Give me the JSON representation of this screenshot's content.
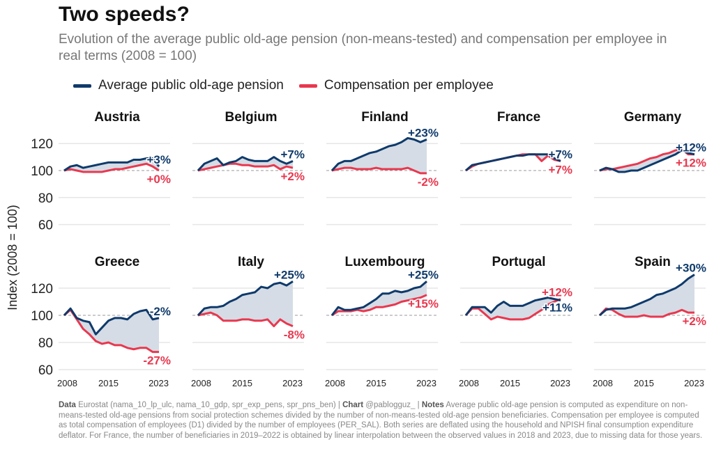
{
  "title": "Two speeds?",
  "subtitle": "Evolution of the average public old-age pension (non-means-tested) and compensation per employee in real terms (2008 = 100)",
  "notes": {
    "data_label": "Data",
    "data_text": "Eurostat (nama_10_lp_ulc, nama_10_gdp, spr_exp_pens, spr_pns_ben) |",
    "chart_label": "Chart",
    "chart_text": "@pablogguz_ |",
    "notes_label": "Notes",
    "notes_text": "Average public old-age pension is computed as expenditure on non-means-tested old-age pensions from social protection schemes divided by the number of non-means-tested old-age pension beneficiaries. Compensation per employee is computed as total compensation of employees (D1) divided by the number of employees (PER_SAL). Both series are deflated using the household and NPISH final consumption expenditure deflator. For France, the number of beneficiaries in 2019–2022 is obtained by linear interpolation between the observed values in 2018 and 2023, due to missing data for those years."
  },
  "chart_data": {
    "type": "line",
    "ylabel": "Index (2008 = 100)",
    "ylim": [
      55,
      130
    ],
    "yticks": [
      "60",
      "80",
      "100",
      "120"
    ],
    "xticks": [
      "2008",
      "2015",
      "2023"
    ],
    "x": [
      2008,
      2009,
      2010,
      2011,
      2012,
      2013,
      2014,
      2015,
      2016,
      2017,
      2018,
      2019,
      2020,
      2021,
      2022,
      2023
    ],
    "reference_line": 100,
    "legend": [
      "Average public old-age pension",
      "Compensation per employee"
    ],
    "colors": {
      "pension": "#0f3a6b",
      "compensation": "#e8384f",
      "gap_fill": "#d5dce5"
    },
    "panels": [
      {
        "country": "Austria",
        "pension": [
          100,
          103,
          104,
          102,
          103,
          104,
          105,
          106,
          106,
          106,
          106,
          108,
          108,
          109,
          109,
          103
        ],
        "compensation": [
          100,
          101,
          100,
          99,
          99,
          99,
          99,
          100,
          101,
          101,
          102,
          103,
          104,
          105,
          103,
          100
        ],
        "pension_label": "+3%",
        "compensation_label": "+0%"
      },
      {
        "country": "Belgium",
        "pension": [
          100,
          105,
          107,
          109,
          104,
          106,
          107,
          110,
          108,
          107,
          107,
          107,
          110,
          107,
          105,
          107
        ],
        "compensation": [
          100,
          101,
          102,
          103,
          104,
          105,
          105,
          104,
          104,
          103,
          103,
          103,
          104,
          101,
          103,
          102
        ],
        "pension_label": "+7%",
        "compensation_label": "+2%"
      },
      {
        "country": "Finland",
        "pension": [
          100,
          105,
          107,
          107,
          109,
          111,
          113,
          114,
          116,
          118,
          119,
          121,
          124,
          123,
          121,
          123
        ],
        "compensation": [
          100,
          101,
          102,
          102,
          101,
          101,
          101,
          102,
          101,
          101,
          101,
          101,
          102,
          100,
          98,
          98
        ],
        "pension_label": "+23%",
        "compensation_label": "-2%"
      },
      {
        "country": "France",
        "pension": [
          100,
          104,
          105,
          106,
          107,
          108,
          109,
          110,
          111,
          111,
          112,
          112,
          112,
          112,
          109,
          107
        ],
        "compensation": [
          100,
          103,
          105,
          106,
          107,
          108,
          109,
          110,
          111,
          112,
          112,
          112,
          107,
          111,
          108,
          107
        ],
        "pension_label": "+7%",
        "compensation_label": "+7%"
      },
      {
        "country": "Germany",
        "pension": [
          100,
          102,
          101,
          99,
          99,
          100,
          100,
          102,
          104,
          106,
          108,
          110,
          112,
          115,
          113,
          112
        ],
        "compensation": [
          100,
          101,
          101,
          102,
          103,
          104,
          105,
          107,
          109,
          110,
          112,
          113,
          115,
          116,
          112,
          112
        ],
        "pension_label": "+12%",
        "compensation_label": "+12%"
      },
      {
        "country": "Greece",
        "pension": [
          100,
          105,
          98,
          96,
          95,
          86,
          91,
          96,
          98,
          98,
          97,
          101,
          103,
          104,
          97,
          98
        ],
        "compensation": [
          100,
          104,
          97,
          90,
          86,
          81,
          79,
          80,
          78,
          78,
          76,
          75,
          76,
          76,
          73,
          73
        ],
        "pension_label": "-2%",
        "compensation_label": "-27%"
      },
      {
        "country": "Italy",
        "pension": [
          100,
          105,
          106,
          106,
          107,
          110,
          112,
          115,
          116,
          117,
          121,
          120,
          123,
          124,
          122,
          125
        ],
        "compensation": [
          100,
          101,
          102,
          100,
          96,
          96,
          96,
          97,
          97,
          96,
          96,
          97,
          92,
          97,
          94,
          92
        ],
        "pension_label": "+25%",
        "compensation_label": "-8%"
      },
      {
        "country": "Luxembourg",
        "pension": [
          100,
          106,
          104,
          104,
          105,
          106,
          109,
          112,
          116,
          116,
          118,
          117,
          118,
          120,
          121,
          125
        ],
        "compensation": [
          100,
          103,
          103,
          103,
          104,
          103,
          104,
          106,
          106,
          107,
          108,
          110,
          111,
          112,
          113,
          115
        ],
        "pension_label": "+25%",
        "compensation_label": "+15%"
      },
      {
        "country": "Portugal",
        "pension": [
          100,
          106,
          106,
          106,
          102,
          107,
          110,
          107,
          107,
          107,
          109,
          111,
          112,
          113,
          112,
          111
        ],
        "compensation": [
          100,
          105,
          105,
          101,
          97,
          99,
          98,
          97,
          97,
          97,
          98,
          101,
          104,
          108,
          110,
          112
        ],
        "pension_label": "+11%",
        "compensation_label": "+12%"
      },
      {
        "country": "Spain",
        "pension": [
          100,
          104,
          105,
          105,
          105,
          106,
          108,
          110,
          112,
          115,
          116,
          118,
          120,
          123,
          127,
          130
        ],
        "compensation": [
          100,
          105,
          104,
          101,
          99,
          99,
          99,
          100,
          99,
          99,
          99,
          101,
          102,
          104,
          102,
          102
        ],
        "pension_label": "+30%",
        "compensation_label": "+2%"
      }
    ]
  }
}
